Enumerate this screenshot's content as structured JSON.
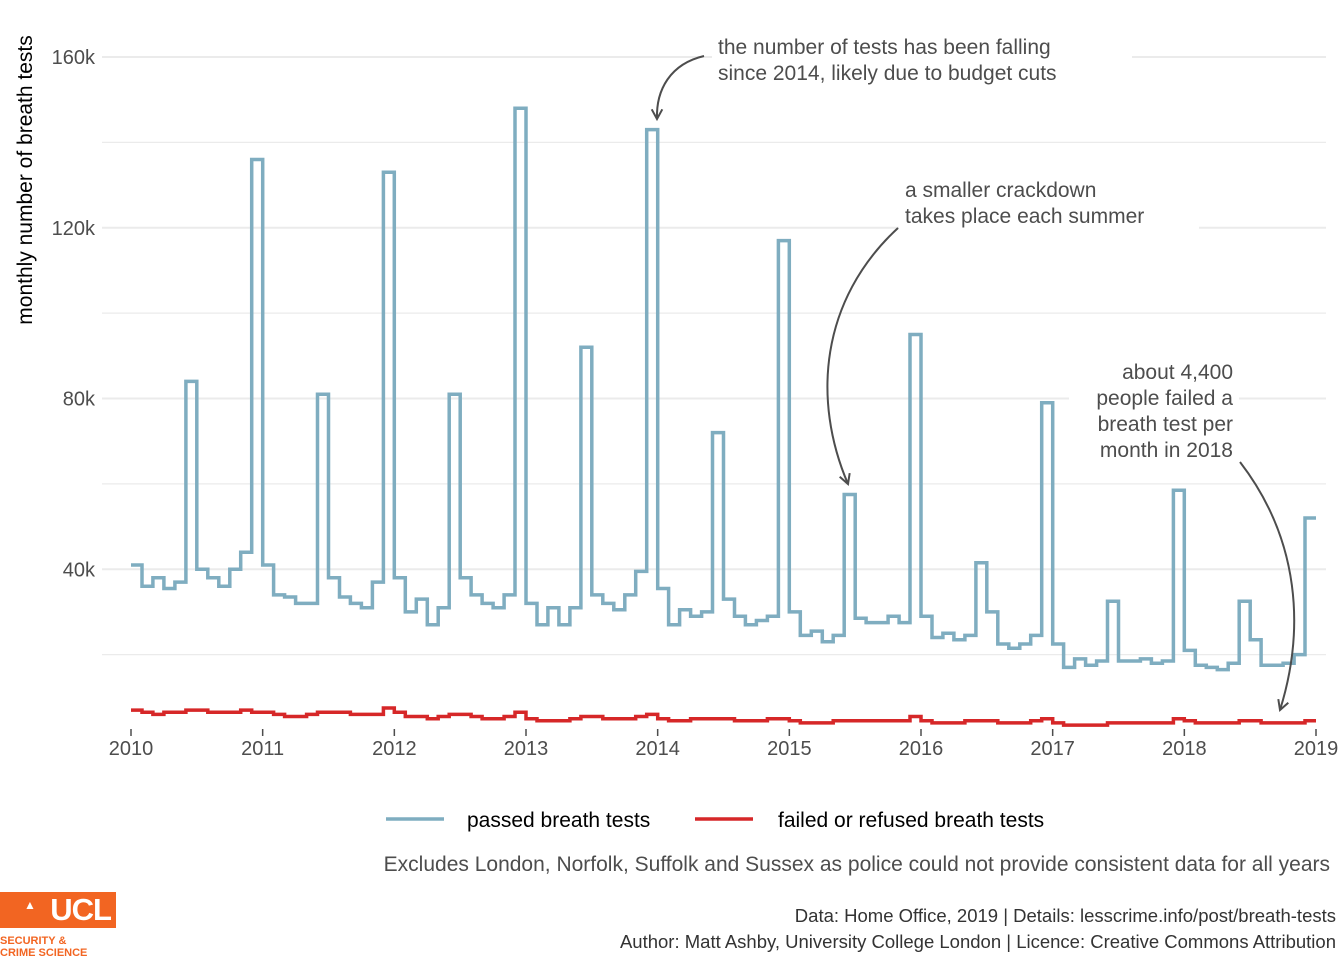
{
  "chart_data": {
    "type": "line",
    "step": true,
    "ylabel": "monthly number of breath tests",
    "xlabel": "",
    "xlim": [
      2010,
      2019
    ],
    "ylim": [
      0,
      160000
    ],
    "x_ticks": [
      {
        "value": 2010,
        "label": "2010"
      },
      {
        "value": 2011,
        "label": "2011"
      },
      {
        "value": 2012,
        "label": "2012"
      },
      {
        "value": 2013,
        "label": "2013"
      },
      {
        "value": 2014,
        "label": "2014"
      },
      {
        "value": 2015,
        "label": "2015"
      },
      {
        "value": 2016,
        "label": "2016"
      },
      {
        "value": 2017,
        "label": "2017"
      },
      {
        "value": 2018,
        "label": "2018"
      },
      {
        "value": 2019,
        "label": "2019"
      }
    ],
    "y_ticks": [
      {
        "value": 40000,
        "label": "40k"
      },
      {
        "value": 80000,
        "label": "80k"
      },
      {
        "value": 120000,
        "label": "120k"
      },
      {
        "value": 160000,
        "label": "160k"
      }
    ],
    "grid": true,
    "legend_position": "bottom",
    "x_start": "2010-01",
    "series": [
      {
        "name": "passed breath tests",
        "color": "#7fadc0",
        "values": [
          41000,
          36000,
          38000,
          35500,
          37000,
          84000,
          40000,
          38000,
          36000,
          40000,
          44000,
          136000,
          41000,
          34000,
          33500,
          32000,
          32000,
          81000,
          38000,
          33500,
          32000,
          31000,
          37000,
          133000,
          38000,
          30000,
          33000,
          27000,
          31000,
          81000,
          38000,
          34000,
          32000,
          31000,
          34000,
          148000,
          32000,
          27000,
          31000,
          27000,
          31000,
          92000,
          34000,
          32000,
          30500,
          34000,
          39500,
          143000,
          35500,
          27000,
          30500,
          29000,
          30000,
          72000,
          33000,
          29000,
          27000,
          28000,
          29000,
          117000,
          30000,
          24500,
          25500,
          23000,
          24500,
          57500,
          28500,
          27500,
          27500,
          29000,
          27500,
          95000,
          29000,
          24000,
          25000,
          23500,
          24500,
          41500,
          30000,
          22500,
          21500,
          22500,
          24500,
          79000,
          22500,
          17000,
          19000,
          17500,
          18500,
          32500,
          18500,
          18500,
          19000,
          18000,
          18500,
          58500,
          21000,
          17500,
          17000,
          16500,
          18000,
          32500,
          23500,
          17500,
          17500,
          18000,
          20000,
          52000
        ]
      },
      {
        "name": "failed or refused breath tests",
        "color": "#d62728",
        "values": [
          7000,
          6500,
          6000,
          6500,
          6500,
          7000,
          7000,
          6500,
          6500,
          6500,
          7000,
          6500,
          6500,
          6000,
          5500,
          5500,
          6000,
          6500,
          6500,
          6500,
          6000,
          6000,
          6000,
          7500,
          6500,
          5500,
          5500,
          5000,
          5500,
          6000,
          6000,
          5500,
          5000,
          5000,
          5500,
          6500,
          5000,
          4500,
          4500,
          4500,
          5000,
          5500,
          5500,
          5000,
          5000,
          5000,
          5500,
          6000,
          5000,
          4500,
          4500,
          5000,
          5000,
          5000,
          5000,
          4500,
          4500,
          4500,
          5000,
          5000,
          4500,
          4000,
          4000,
          4000,
          4500,
          4500,
          4500,
          4500,
          4500,
          4500,
          4500,
          5500,
          4500,
          4000,
          4000,
          4000,
          4500,
          4500,
          4500,
          4000,
          4000,
          4000,
          4500,
          5000,
          4000,
          3500,
          3500,
          3500,
          3500,
          4000,
          4000,
          4000,
          4000,
          4000,
          4000,
          5000,
          4500,
          4000,
          4000,
          4000,
          4000,
          4500,
          4500,
          4000,
          4000,
          4000,
          4000,
          4500
        ]
      }
    ],
    "annotations": [
      {
        "lines": [
          "the number of tests has been falling",
          "since 2014, likely due to budget cuts"
        ],
        "target_x": 2014.0,
        "target_y": 143000
      },
      {
        "lines": [
          "a smaller crackdown",
          "takes place each summer"
        ],
        "target_x": 2015.46,
        "target_y": 57500
      },
      {
        "lines": [
          "about 4,400",
          "people failed a",
          "breath test per",
          "month in 2018"
        ],
        "target_x": 2018.75,
        "target_y": 4400
      }
    ]
  },
  "caption": "Excludes London, Norfolk, Suffolk and Sussex as police could not provide consistent data for all years",
  "credits": {
    "line1": "Data: Home Office, 2019 |  Details: lesscrime.info/post/breath-tests",
    "line2": "Author: Matt Ashby, University College London |  Licence: Creative Commons Attribution"
  },
  "logo": {
    "text": "UCL",
    "subtitle_line1": "SECURITY &",
    "subtitle_line2": "CRIME SCIENCE",
    "color": "#f26522"
  }
}
